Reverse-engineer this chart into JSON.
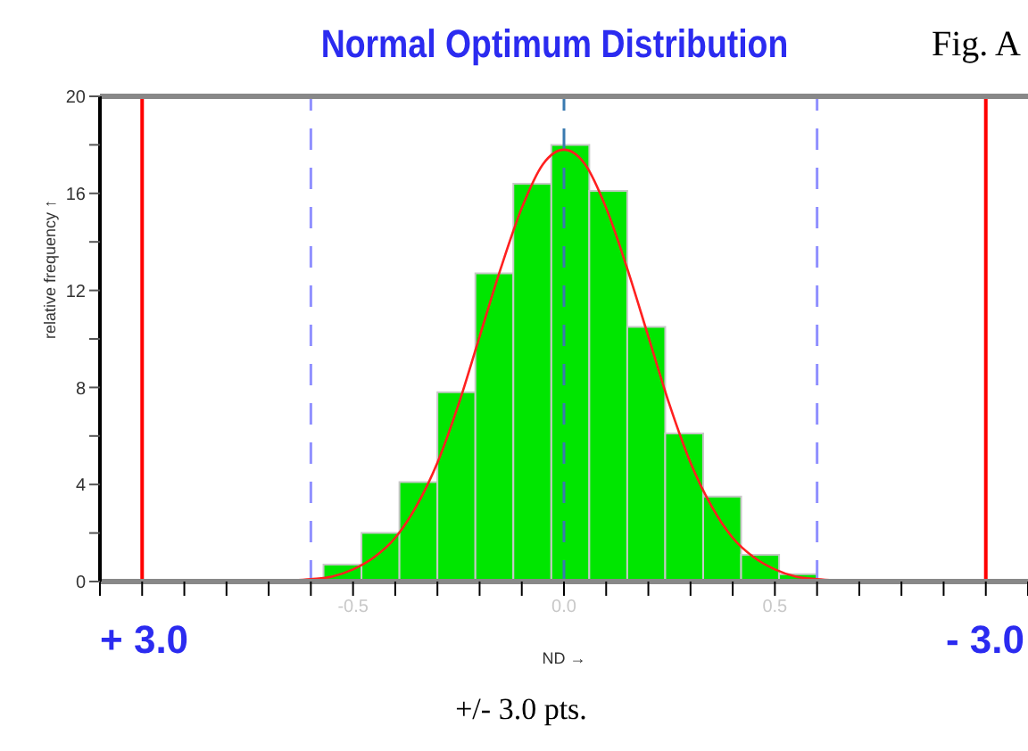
{
  "chart_data": {
    "type": "histogram",
    "title": "Normal Optimum Distribution",
    "xlabel": "ND →",
    "ylabel": "relative frequency ↑",
    "annotations": [
      "Fig. A",
      "+/- 3.0 pts.",
      "+ 3.0",
      "- 3.0"
    ],
    "bins": [
      -0.57,
      -0.48,
      -0.39,
      -0.3,
      -0.21,
      -0.12,
      -0.03,
      0.06,
      0.15,
      0.24,
      0.33,
      0.42,
      0.51,
      0.6
    ],
    "values": [
      0.7,
      2.0,
      4.1,
      7.8,
      12.7,
      16.4,
      18.0,
      16.1,
      10.5,
      6.1,
      3.5,
      1.1,
      0.3
    ],
    "color": "#00e600",
    "series": [
      {
        "type": "line",
        "color": "#ff2020",
        "x": [
          -0.7,
          -0.6,
          -0.55,
          -0.5,
          -0.45,
          -0.4,
          -0.35,
          -0.3,
          -0.25,
          -0.2,
          -0.15,
          -0.1,
          -0.05,
          0,
          0.05,
          0.1,
          0.15,
          0.2,
          0.25,
          0.3,
          0.35,
          0.4,
          0.45,
          0.5,
          0.55,
          0.6,
          0.7
        ],
        "values": [
          0,
          0.1,
          0.2,
          0.5,
          1.0,
          1.8,
          3.1,
          4.9,
          7.3,
          10.1,
          12.9,
          15.4,
          17.2,
          17.8,
          17.2,
          15.4,
          12.9,
          10.1,
          7.3,
          4.9,
          3.1,
          1.8,
          1.0,
          0.5,
          0.2,
          0.1,
          0
        ]
      }
    ],
    "ref_lines": [
      {
        "axis": "x",
        "value": -1.0,
        "color": "#ff0000",
        "line_style": "solid"
      },
      {
        "axis": "x",
        "value": 1.0,
        "color": "#ff0000",
        "line_style": "solid"
      },
      {
        "axis": "x",
        "value": -0.6,
        "color": "#9090ff",
        "line_style": "dashed"
      },
      {
        "axis": "x",
        "value": 0.6,
        "color": "#9090ff",
        "line_style": "dashed"
      },
      {
        "axis": "x",
        "value": 0,
        "color": "#3a7ab0",
        "line_style": "dashed"
      }
    ],
    "xlim": [
      -1.1,
      1.1
    ],
    "xticks": [
      {
        "value": -1.1,
        "label": null
      },
      {
        "value": -1.0,
        "label": null
      },
      {
        "value": -0.9,
        "label": null
      },
      {
        "value": -0.8,
        "label": null
      },
      {
        "value": -0.7,
        "label": null
      },
      {
        "value": -0.6,
        "label": null
      },
      -0.5,
      {
        "value": -0.4,
        "label": null
      },
      {
        "value": -0.3,
        "label": null
      },
      {
        "value": -0.2,
        "label": null
      },
      {
        "value": -0.1,
        "label": null
      },
      {
        "value": 0,
        "label": "0.0"
      },
      {
        "value": 0.1,
        "label": null
      },
      {
        "value": 0.2,
        "label": null
      },
      {
        "value": 0.3,
        "label": null
      },
      {
        "value": 0.4,
        "label": null
      },
      0.5,
      {
        "value": 0.6,
        "label": null
      },
      {
        "value": 0.7,
        "label": null
      },
      {
        "value": 0.8,
        "label": null
      },
      {
        "value": 0.9,
        "label": null
      },
      {
        "value": 1.0,
        "label": null
      },
      {
        "value": 1.1,
        "label": null
      }
    ],
    "ylim": [
      0,
      20
    ],
    "yticks": [
      0,
      {
        "value": 2,
        "label": null
      },
      4,
      {
        "value": 6,
        "label": null
      },
      8,
      {
        "value": 10,
        "label": null
      },
      12,
      {
        "value": 14,
        "label": null
      },
      16,
      {
        "value": 18,
        "label": null
      },
      20
    ]
  }
}
